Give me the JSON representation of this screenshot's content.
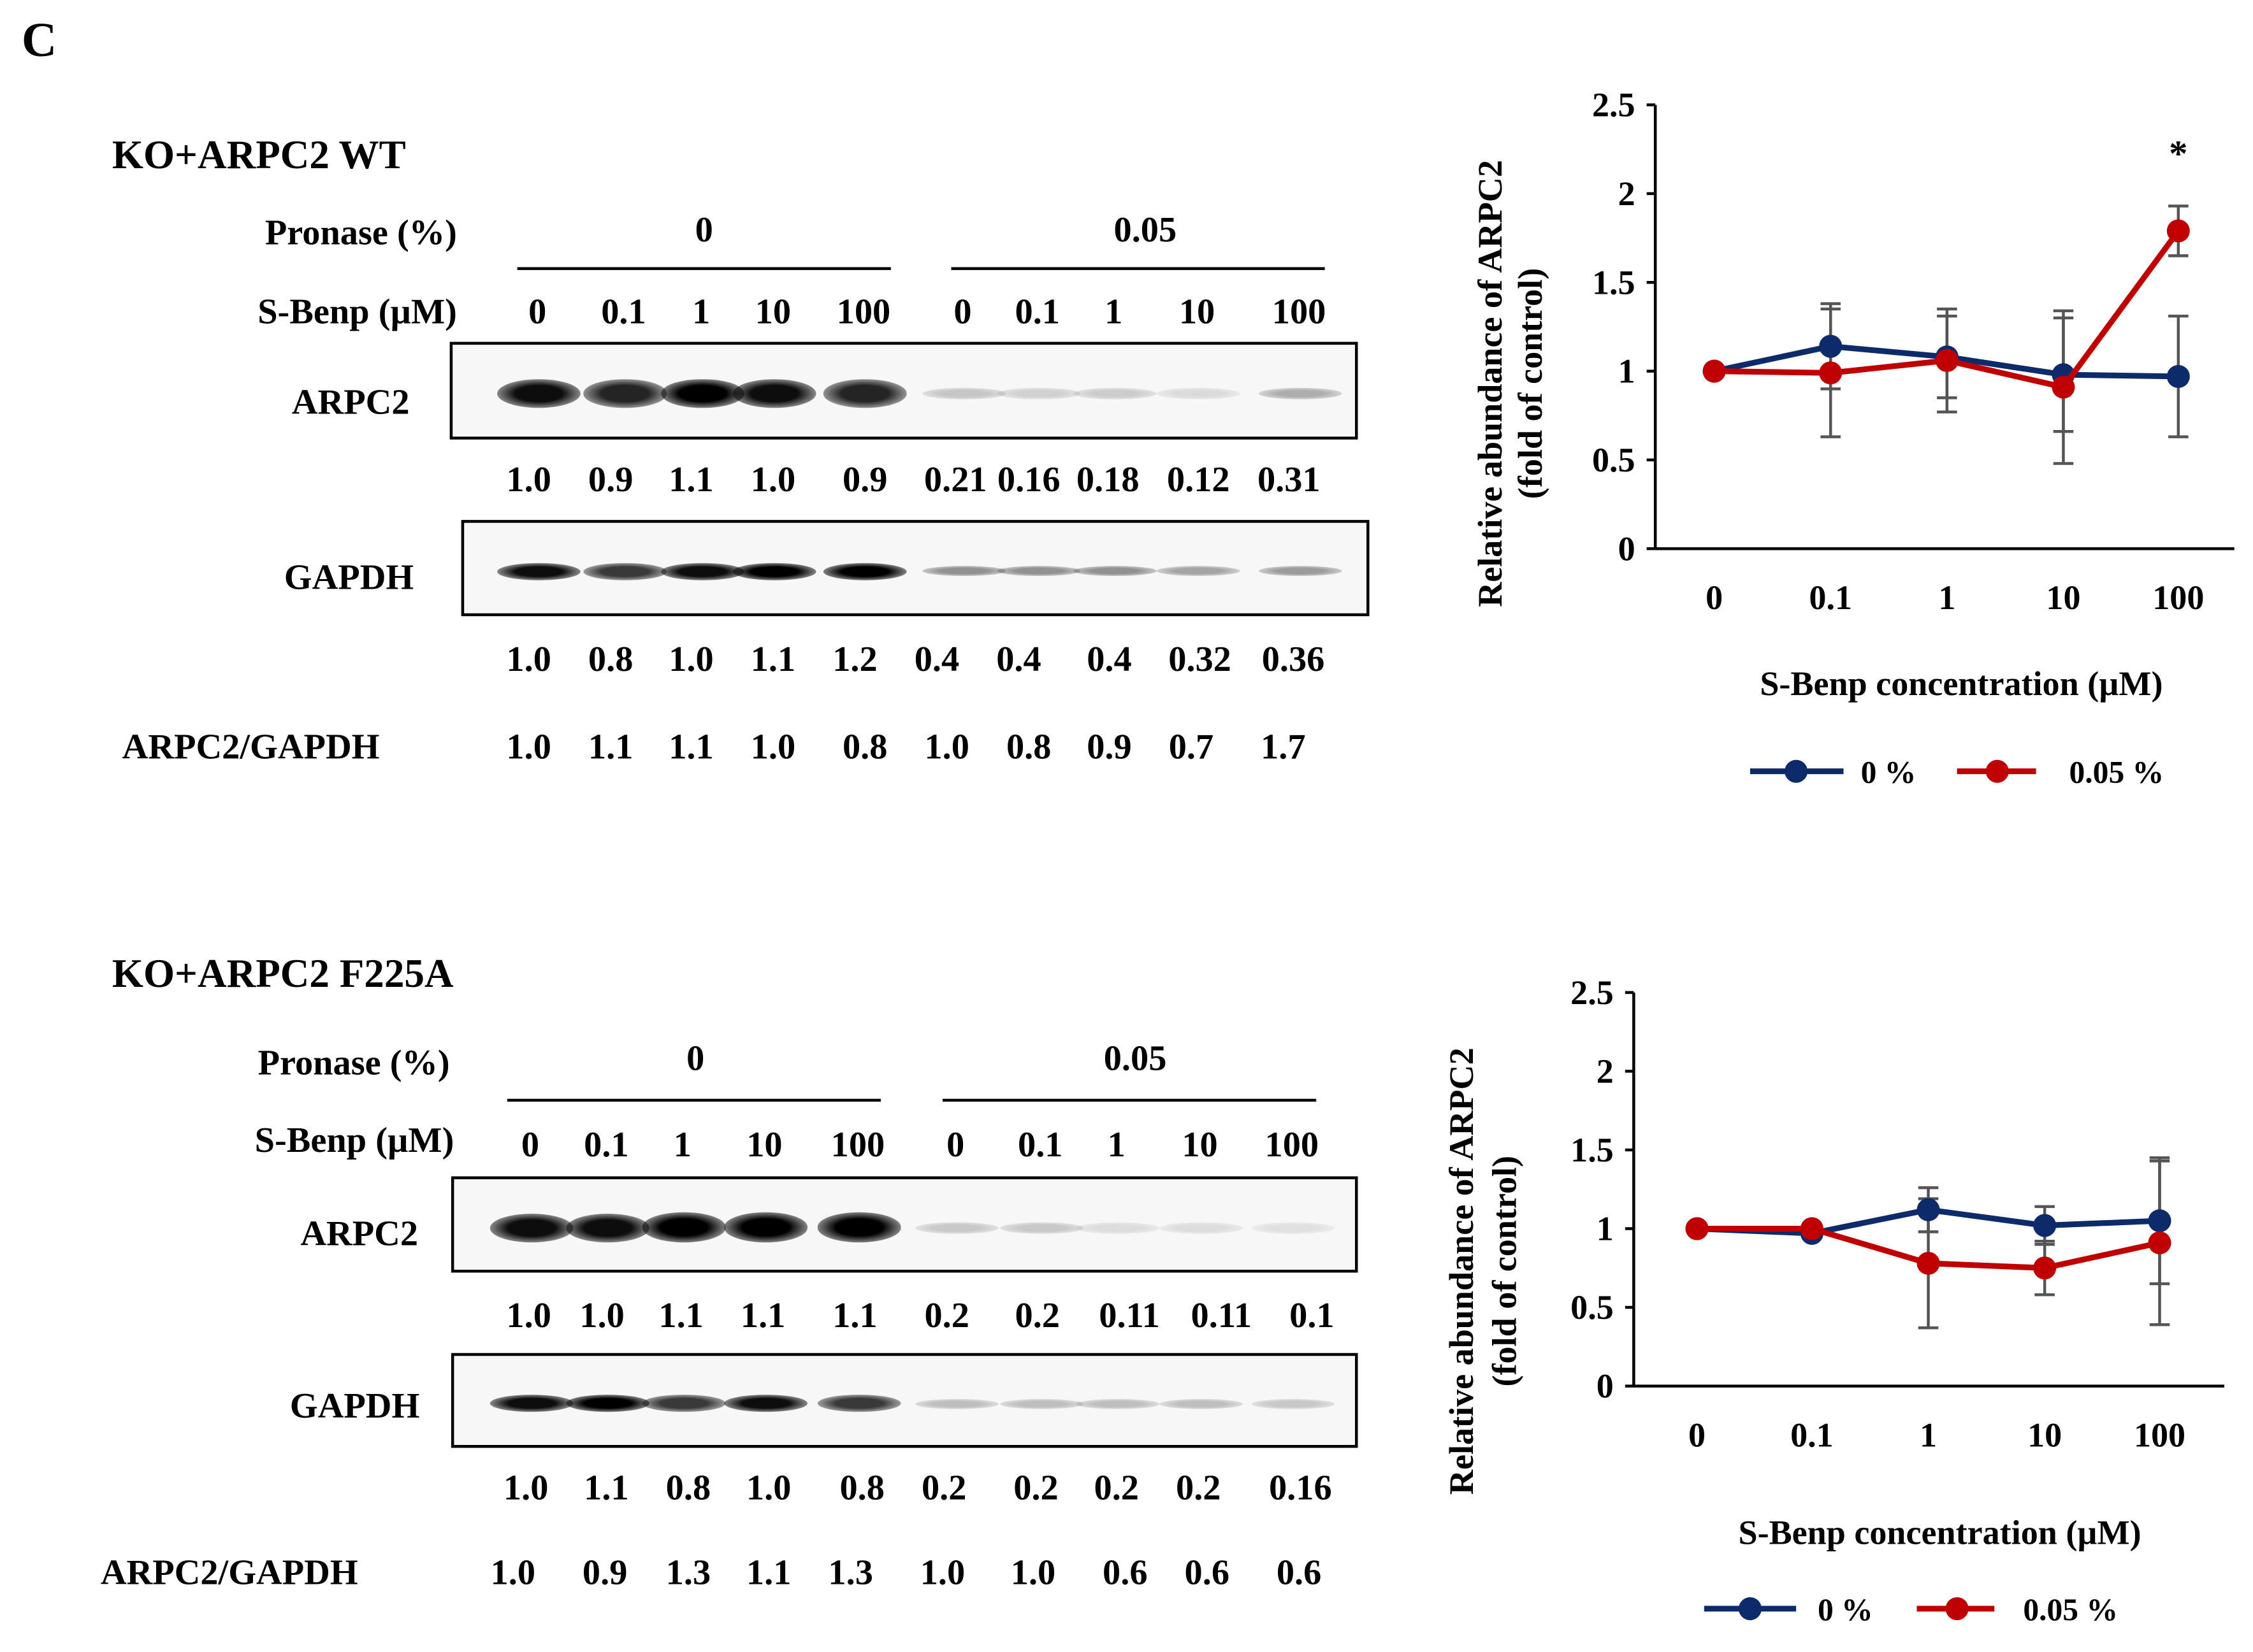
{
  "panel_letter": "C",
  "panels": [
    {
      "title": "KO+ARPC2 WT",
      "pronase_label": "Pronase (%)",
      "pronase_groups": [
        "0",
        "0.05"
      ],
      "sbenp_label": "S-Benp (µM)",
      "lanes": [
        "0",
        "0.1",
        "1",
        "10",
        "100",
        "0",
        "0.1",
        "1",
        "10",
        "100"
      ],
      "arpc2_label": "ARPC2",
      "arpc2_values": [
        "1.0",
        "0.9",
        "1.1",
        "1.0",
        "0.9",
        "0.21",
        "0.16",
        "0.18",
        "0.12",
        "0.31"
      ],
      "gapdh_label": "GAPDH",
      "gapdh_values": [
        "1.0",
        "0.8",
        "1.0",
        "1.1",
        "1.2",
        "0.4",
        "0.4",
        "0.4",
        "0.32",
        "0.36"
      ],
      "ratio_label": "ARPC2/GAPDH",
      "ratio_values": [
        "1.0",
        "1.1",
        "1.1",
        "1.0",
        "0.8",
        "1.0",
        "0.8",
        "0.9",
        "0.7",
        "1.7"
      ]
    },
    {
      "title": "KO+ARPC2 F225A",
      "pronase_label": "Pronase (%)",
      "pronase_groups": [
        "0",
        "0.05"
      ],
      "sbenp_label": "S-Benp (µM)",
      "lanes": [
        "0",
        "0.1",
        "1",
        "10",
        "100",
        "0",
        "0.1",
        "1",
        "10",
        "100"
      ],
      "arpc2_label": "ARPC2",
      "arpc2_values": [
        "1.0",
        "1.0",
        "1.1",
        "1.1",
        "1.1",
        "0.2",
        "0.2",
        "0.11",
        "0.11",
        "0.1"
      ],
      "gapdh_label": "GAPDH",
      "gapdh_values": [
        "1.0",
        "1.1",
        "0.8",
        "1.0",
        "0.8",
        "0.2",
        "0.2",
        "0.2",
        "0.2",
        "0.16"
      ],
      "ratio_label": "ARPC2/GAPDH",
      "ratio_values": [
        "1.0",
        "0.9",
        "1.3",
        "1.1",
        "1.3",
        "1.0",
        "1.0",
        "0.6",
        "0.6",
        "0.6"
      ]
    }
  ],
  "chart_data": [
    {
      "type": "line",
      "categories": [
        "0",
        "0.1",
        "1",
        "10",
        "100"
      ],
      "ylabel": [
        "Relative abundance of ARPC2",
        "(fold of control)"
      ],
      "xlabel": "S-Benp concentration (µM)",
      "ylim": [
        0,
        2.5
      ],
      "yticks": [
        "0",
        "0.5",
        "1",
        "1.5",
        "2",
        "2.5"
      ],
      "legend_position": "bottom",
      "annotation": "*",
      "annotation_index": 4,
      "series": [
        {
          "name": "0 %",
          "color": "#0d2a6b",
          "values": [
            1.0,
            1.14,
            1.08,
            0.98,
            0.97
          ],
          "errors": [
            0,
            0.24,
            0.23,
            0.32,
            0.34
          ]
        },
        {
          "name": "0.05 %",
          "color": "#c00000",
          "values": [
            1.0,
            0.99,
            1.06,
            0.91,
            1.79
          ],
          "errors": [
            0,
            0.36,
            0.29,
            0.43,
            0.14
          ]
        }
      ]
    },
    {
      "type": "line",
      "categories": [
        "0",
        "0.1",
        "1",
        "10",
        "100"
      ],
      "ylabel": [
        "Relative abundance of ARPC2",
        "(fold of control)"
      ],
      "xlabel": "S-Benp concentration (µM)",
      "ylim": [
        0,
        2.5
      ],
      "yticks": [
        "0",
        "0.5",
        "1",
        "1.5",
        "2",
        "2.5"
      ],
      "legend_position": "bottom",
      "series": [
        {
          "name": "0 %",
          "color": "#0d2a6b",
          "values": [
            1.0,
            0.97,
            1.12,
            1.02,
            1.05
          ],
          "errors": [
            0,
            0,
            0.14,
            0.12,
            0.4
          ]
        },
        {
          "name": "0.05 %",
          "color": "#c00000",
          "values": [
            1.0,
            1.0,
            0.78,
            0.75,
            0.91
          ],
          "errors": [
            0,
            0,
            0.41,
            0.17,
            0.52
          ]
        }
      ]
    }
  ]
}
